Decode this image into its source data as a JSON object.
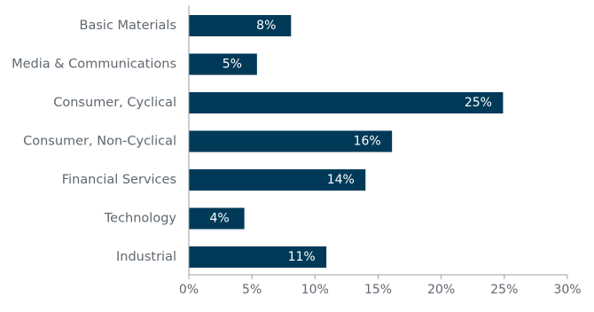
{
  "chart_data": {
    "type": "bar",
    "orientation": "horizontal",
    "categories": [
      "Basic Materials",
      "Media & Communications",
      "Consumer, Cyclical",
      "Consumer, Non-Cyclical",
      "Financial Services",
      "Technology",
      "Industrial"
    ],
    "values": [
      8.1,
      5.4,
      24.9,
      16.1,
      14.0,
      4.4,
      10.9
    ],
    "data_labels": [
      "8%",
      "5%",
      "25%",
      "16%",
      "14%",
      "4%",
      "11%"
    ],
    "xlim": [
      0,
      30
    ],
    "x_ticks": [
      0,
      5,
      10,
      15,
      20,
      25,
      30
    ],
    "x_tick_labels": [
      "0%",
      "5%",
      "10%",
      "15%",
      "20%",
      "25%",
      "30%"
    ],
    "grid": false,
    "legend": "none",
    "colors": {
      "bar": "#003a58",
      "axis": "#9aa1a8",
      "label_text": "#5f6770",
      "data_label_text": "#ffffff"
    }
  }
}
